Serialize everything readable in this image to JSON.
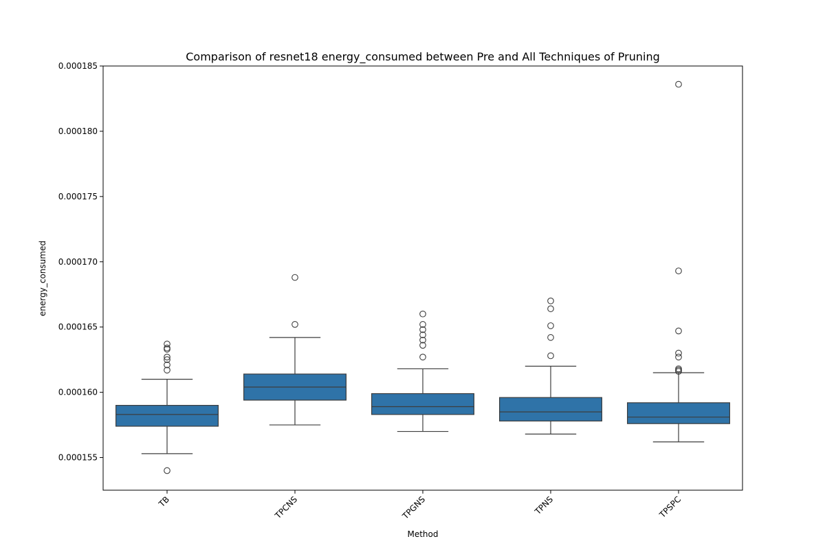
{
  "chart_data": {
    "type": "box",
    "title": "Comparison of resnet18 energy_consumed between Pre and All Techniques of Pruning",
    "xlabel": "Method",
    "ylabel": "energy_consumed",
    "ylim": [
      0.0001525,
      0.000185
    ],
    "yticks": [
      "0.000155",
      "0.000160",
      "0.000165",
      "0.000170",
      "0.000175",
      "0.000180",
      "0.000185"
    ],
    "ytick_values": [
      0.000155,
      0.00016,
      0.000165,
      0.00017,
      0.000175,
      0.00018,
      0.000185
    ],
    "categories": [
      "TB",
      "TPCNS",
      "TPGNS",
      "TPNS",
      "TPSPC"
    ],
    "box_color": "#2f73a8",
    "boxes": [
      {
        "label": "TB",
        "whisker_low": 0.0001553,
        "q1": 0.0001574,
        "median": 0.0001583,
        "q3": 0.000159,
        "whisker_high": 0.000161,
        "outliers": [
          0.000154,
          0.0001617,
          0.0001621,
          0.0001625,
          0.0001627,
          0.0001633,
          0.0001634,
          0.0001637
        ]
      },
      {
        "label": "TPCNS",
        "whisker_low": 0.0001575,
        "q1": 0.0001594,
        "median": 0.0001604,
        "q3": 0.0001614,
        "whisker_high": 0.0001642,
        "outliers": [
          0.0001652,
          0.0001688
        ]
      },
      {
        "label": "TPGNS",
        "whisker_low": 0.000157,
        "q1": 0.0001583,
        "median": 0.0001589,
        "q3": 0.0001599,
        "whisker_high": 0.0001618,
        "outliers": [
          0.0001627,
          0.0001636,
          0.000164,
          0.0001644,
          0.0001648,
          0.0001652,
          0.000166
        ]
      },
      {
        "label": "TPNS",
        "whisker_low": 0.0001568,
        "q1": 0.0001578,
        "median": 0.0001585,
        "q3": 0.0001596,
        "whisker_high": 0.000162,
        "outliers": [
          0.0001628,
          0.0001642,
          0.0001651,
          0.0001664,
          0.000167
        ]
      },
      {
        "label": "TPSPC",
        "whisker_low": 0.0001562,
        "q1": 0.0001576,
        "median": 0.0001581,
        "q3": 0.0001592,
        "whisker_high": 0.0001615,
        "outliers": [
          0.0001616,
          0.0001617,
          0.0001618,
          0.0001627,
          0.000163,
          0.0001647,
          0.0001693,
          0.0001836
        ]
      }
    ],
    "grid": false,
    "legend": "none"
  }
}
